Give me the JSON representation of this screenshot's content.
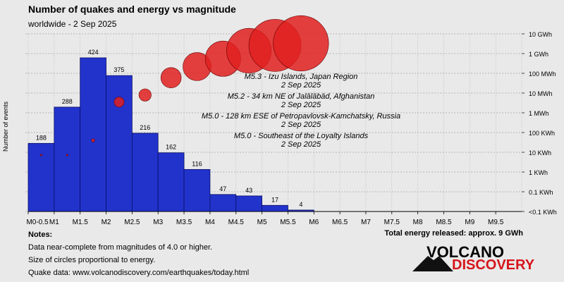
{
  "header": {
    "title": "Number of quakes and energy vs magnitude",
    "subtitle": "worldwide -  2 Sep 2025"
  },
  "chart_data": {
    "type": "bar",
    "ylabel": "Number of events",
    "categories": [
      "M0-0.5",
      "M0.5-1",
      "M1-1.5",
      "M1.5-2",
      "M2-2.5",
      "M2.5-3",
      "M3-3.5",
      "M3.5-4",
      "M4-4.5",
      "M4.5-5",
      "M5-5.5"
    ],
    "values": [
      188,
      288,
      424,
      375,
      216,
      162,
      116,
      47,
      43,
      17,
      4
    ],
    "x_tick_labels": [
      "M0-0.5",
      "M1",
      "M1.5",
      "M2",
      "M2.5",
      "M3",
      "M3.5",
      "M4",
      "M4.5",
      "M5",
      "M5.5",
      "M6",
      "M6.5",
      "M7",
      "M7.5",
      "M8",
      "M8.5",
      "M9",
      "M9.5"
    ],
    "right_axis_labels": [
      "10 GWh",
      "1 GWh",
      "100 MWh",
      "10 MWh",
      "1 MWh",
      "100 KWh",
      "10 KWh",
      "1 KWh",
      "0.1 KWh",
      "<0.1 KWh"
    ],
    "energy_scale": "log",
    "energy_circles": [
      {
        "magnitude": 0.25,
        "energy_wh": 0.3
      },
      {
        "magnitude": 0.75,
        "energy_wh": 3000
      },
      {
        "magnitude": 1.25,
        "energy_wh": 40000
      },
      {
        "magnitude": 1.75,
        "energy_wh": 3500000
      },
      {
        "magnitude": 2.25,
        "energy_wh": 8000000
      },
      {
        "magnitude": 2.75,
        "energy_wh": 60000000
      },
      {
        "magnitude": 3.25,
        "energy_wh": 220000000
      },
      {
        "magnitude": 3.75,
        "energy_wh": 550000000
      },
      {
        "magnitude": 4.25,
        "energy_wh": 1400000000
      },
      {
        "magnitude": 4.75,
        "energy_wh": 2600000000
      },
      {
        "magnitude": 5.25,
        "energy_wh": 3300000000
      }
    ],
    "bar_color": "#2233cc",
    "circle_color": "#e02020",
    "annotations": [
      {
        "event": "M5.3 - Izu Islands, Japan Region",
        "date": "2 Sep 2025"
      },
      {
        "event": "M5.2 - 34 km NE of Jalālābād, Afghanistan",
        "date": "2 Sep 2025"
      },
      {
        "event": "M5.0 - 128 km ESE of Petropavlovsk-Kamchatsky, Russia",
        "date": "2 Sep 2025"
      },
      {
        "event": "M5.0 - Southeast of the Loyalty Islands",
        "date": "2 Sep 2025"
      }
    ]
  },
  "footer": {
    "notes_heading": "Notes:",
    "notes": [
      "Data near-complete from magnitudes of 4.0 or higher.",
      "Size of circles proportional to energy.",
      "Quake data: www.volcanodiscovery.com/earthquakes/today.html"
    ],
    "total_energy": "Total energy released: approx. 9 GWh"
  },
  "logo": {
    "line1": "VOLCANO",
    "line2": "DISCOVERY"
  }
}
